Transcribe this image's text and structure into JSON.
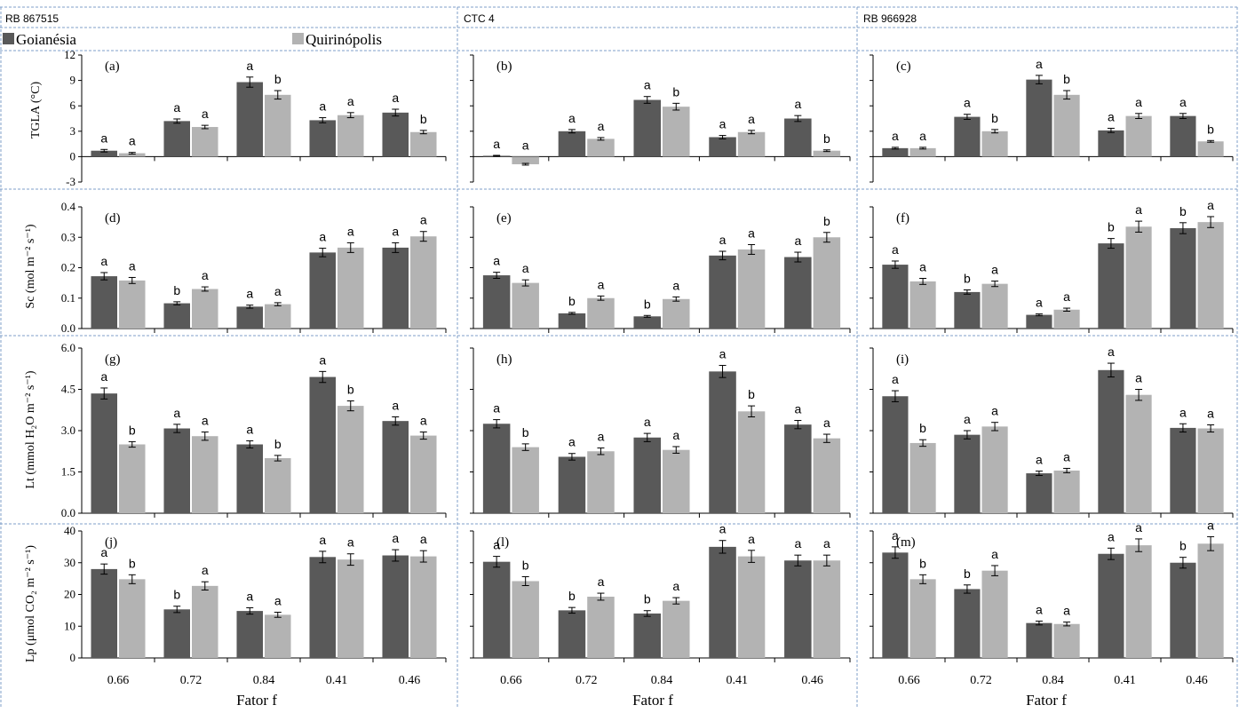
{
  "colors": {
    "goianesia": "#595959",
    "quirinopolis": "#b3b3b3",
    "divider": "#7f9fc9"
  },
  "columns": [
    "RB 867515",
    "CTC 4",
    "RB 966928"
  ],
  "legend": [
    "Goianésia",
    "Quirinópolis"
  ],
  "x_title": "Fator f",
  "rows": [
    {
      "ylabel": "TGLA (°C)",
      "ylim": [
        -3,
        12
      ],
      "ticks": [
        12,
        9,
        6,
        3,
        0,
        -3
      ],
      "tick_labels": [
        "12",
        "9",
        "6",
        "3",
        "0",
        "-3"
      ]
    },
    {
      "ylabel": "Sc (mol m⁻² s⁻¹)",
      "ylim": [
        0,
        0.4
      ],
      "ticks": [
        0.4,
        0.3,
        0.2,
        0.1,
        0.0
      ],
      "tick_labels": [
        "0.4",
        "0.3",
        "0.2",
        "0.1",
        "0.0"
      ]
    },
    {
      "ylabel": "Lt (mmol H₂O m⁻² s⁻¹)",
      "ylim": [
        0,
        6
      ],
      "ticks": [
        6,
        4.5,
        3,
        1.5,
        0
      ],
      "tick_labels": [
        "6.0",
        "4.5",
        "3.0",
        "1.5",
        "0.0"
      ]
    },
    {
      "ylabel": "Lp (μmol CO₂ m⁻² s⁻¹)",
      "ylim": [
        0,
        40
      ],
      "ticks": [
        40,
        30,
        20,
        10,
        0
      ],
      "tick_labels": [
        "40",
        "30",
        "20",
        "10",
        "0"
      ]
    }
  ],
  "chart_data": [
    {
      "type": "bar",
      "panel": "(a)",
      "row": 0,
      "col": 0,
      "categories": [
        "0.66",
        "0.72",
        "0.84",
        "0.41",
        "0.46"
      ],
      "series": [
        {
          "name": "Goianésia",
          "values": [
            0.7,
            4.2,
            8.8,
            4.3,
            5.2
          ],
          "errors": [
            0.15,
            0.25,
            0.6,
            0.3,
            0.4
          ],
          "letters": [
            "a",
            "a",
            "a",
            "a",
            "a"
          ]
        },
        {
          "name": "Quirinópolis",
          "values": [
            0.4,
            3.5,
            7.3,
            4.9,
            2.9
          ],
          "errors": [
            0.1,
            0.2,
            0.5,
            0.3,
            0.2
          ],
          "letters": [
            "a",
            "a",
            "b",
            "a",
            "b"
          ]
        }
      ]
    },
    {
      "type": "bar",
      "panel": "(b)",
      "row": 0,
      "col": 1,
      "categories": [
        "0.66",
        "0.72",
        "0.84",
        "0.41",
        "0.46"
      ],
      "series": [
        {
          "name": "Goianésia",
          "values": [
            0.1,
            3.0,
            6.7,
            2.3,
            4.5
          ],
          "errors": [
            0.05,
            0.2,
            0.4,
            0.2,
            0.35
          ],
          "letters": [
            "a",
            "a",
            "a",
            "a",
            "a"
          ]
        },
        {
          "name": "Quirinópolis",
          "values": [
            -0.9,
            2.1,
            5.9,
            2.9,
            0.7
          ],
          "errors": [
            0.1,
            0.15,
            0.4,
            0.2,
            0.1
          ],
          "letters": [
            "a",
            "a",
            "b",
            "a",
            "b"
          ]
        }
      ]
    },
    {
      "type": "bar",
      "panel": "(c)",
      "row": 0,
      "col": 2,
      "categories": [
        "0.66",
        "0.72",
        "0.84",
        "0.41",
        "0.46"
      ],
      "series": [
        {
          "name": "Goianésia",
          "values": [
            1.0,
            4.7,
            9.1,
            3.1,
            4.8
          ],
          "errors": [
            0.1,
            0.3,
            0.5,
            0.25,
            0.3
          ],
          "letters": [
            "a",
            "a",
            "a",
            "a",
            "a"
          ]
        },
        {
          "name": "Quirinópolis",
          "values": [
            1.0,
            3.0,
            7.3,
            4.8,
            1.8
          ],
          "errors": [
            0.1,
            0.2,
            0.5,
            0.3,
            0.1
          ],
          "letters": [
            "a",
            "b",
            "b",
            "a",
            "b"
          ]
        }
      ]
    },
    {
      "type": "bar",
      "panel": "(d)",
      "row": 1,
      "col": 0,
      "categories": [
        "0.66",
        "0.72",
        "0.84",
        "0.41",
        "0.46"
      ],
      "series": [
        {
          "name": "Goianésia",
          "values": [
            0.172,
            0.083,
            0.072,
            0.25,
            0.266
          ],
          "errors": [
            0.012,
            0.005,
            0.005,
            0.014,
            0.016
          ],
          "letters": [
            "a",
            "b",
            "a",
            "a",
            "a"
          ]
        },
        {
          "name": "Quirinópolis",
          "values": [
            0.158,
            0.13,
            0.08,
            0.266,
            0.303
          ],
          "errors": [
            0.01,
            0.007,
            0.005,
            0.016,
            0.016
          ],
          "letters": [
            "a",
            "a",
            "a",
            "a",
            "a"
          ]
        }
      ]
    },
    {
      "type": "bar",
      "panel": "(e)",
      "row": 1,
      "col": 1,
      "categories": [
        "0.66",
        "0.72",
        "0.84",
        "0.41",
        "0.46"
      ],
      "series": [
        {
          "name": "Goianésia",
          "values": [
            0.175,
            0.05,
            0.04,
            0.24,
            0.235
          ],
          "errors": [
            0.01,
            0.003,
            0.003,
            0.014,
            0.016
          ],
          "letters": [
            "a",
            "b",
            "b",
            "a",
            "a"
          ]
        },
        {
          "name": "Quirinópolis",
          "values": [
            0.15,
            0.1,
            0.097,
            0.26,
            0.3
          ],
          "errors": [
            0.01,
            0.007,
            0.007,
            0.016,
            0.016
          ],
          "letters": [
            "a",
            "a",
            "a",
            "a",
            "b"
          ]
        }
      ]
    },
    {
      "type": "bar",
      "panel": "(f)",
      "row": 1,
      "col": 2,
      "categories": [
        "0.66",
        "0.72",
        "0.84",
        "0.41",
        "0.46"
      ],
      "series": [
        {
          "name": "Goianésia",
          "values": [
            0.21,
            0.12,
            0.045,
            0.28,
            0.33
          ],
          "errors": [
            0.012,
            0.007,
            0.003,
            0.016,
            0.018
          ],
          "letters": [
            "a",
            "b",
            "a",
            "b",
            "b"
          ]
        },
        {
          "name": "Quirinópolis",
          "values": [
            0.155,
            0.147,
            0.062,
            0.335,
            0.35
          ],
          "errors": [
            0.01,
            0.009,
            0.005,
            0.018,
            0.018
          ],
          "letters": [
            "a",
            "a",
            "a",
            "a",
            "a"
          ]
        }
      ]
    },
    {
      "type": "bar",
      "panel": "(g)",
      "row": 2,
      "col": 0,
      "categories": [
        "0.66",
        "0.72",
        "0.84",
        "0.41",
        "0.46"
      ],
      "series": [
        {
          "name": "Goianésia",
          "values": [
            4.35,
            3.08,
            2.5,
            4.95,
            3.35
          ],
          "errors": [
            0.2,
            0.15,
            0.13,
            0.2,
            0.15
          ],
          "letters": [
            "a",
            "a",
            "a",
            "a",
            "a"
          ]
        },
        {
          "name": "Quirinópolis",
          "values": [
            2.5,
            2.8,
            2.0,
            3.9,
            2.82
          ],
          "errors": [
            0.1,
            0.15,
            0.1,
            0.18,
            0.13
          ],
          "letters": [
            "b",
            "a",
            "b",
            "b",
            "a"
          ]
        }
      ]
    },
    {
      "type": "bar",
      "panel": "(h)",
      "row": 2,
      "col": 1,
      "categories": [
        "0.66",
        "0.72",
        "0.84",
        "0.41",
        "0.46"
      ],
      "series": [
        {
          "name": "Goianésia",
          "values": [
            3.25,
            2.05,
            2.75,
            5.15,
            3.22
          ],
          "errors": [
            0.15,
            0.12,
            0.15,
            0.22,
            0.15
          ],
          "letters": [
            "a",
            "a",
            "a",
            "a",
            "a"
          ]
        },
        {
          "name": "Quirinópolis",
          "values": [
            2.4,
            2.25,
            2.3,
            3.7,
            2.72
          ],
          "errors": [
            0.12,
            0.12,
            0.12,
            0.2,
            0.15
          ],
          "letters": [
            "b",
            "a",
            "a",
            "b",
            "a"
          ]
        }
      ]
    },
    {
      "type": "bar",
      "panel": "(i)",
      "row": 2,
      "col": 2,
      "categories": [
        "0.66",
        "0.72",
        "0.84",
        "0.41",
        "0.46"
      ],
      "series": [
        {
          "name": "Goianésia",
          "values": [
            4.25,
            2.85,
            1.45,
            5.2,
            3.1
          ],
          "errors": [
            0.2,
            0.15,
            0.08,
            0.25,
            0.15
          ],
          "letters": [
            "a",
            "a",
            "a",
            "a",
            "a"
          ]
        },
        {
          "name": "Quirinópolis",
          "values": [
            2.55,
            3.15,
            1.55,
            4.3,
            3.08
          ],
          "errors": [
            0.12,
            0.15,
            0.08,
            0.2,
            0.13
          ],
          "letters": [
            "b",
            "a",
            "a",
            "a",
            "a"
          ]
        }
      ]
    },
    {
      "type": "bar",
      "panel": "(j)",
      "row": 3,
      "col": 0,
      "categories": [
        "0.66",
        "0.72",
        "0.84",
        "0.41",
        "0.46"
      ],
      "series": [
        {
          "name": "Goianésia",
          "values": [
            28,
            15.3,
            14.8,
            31.8,
            32.3
          ],
          "errors": [
            1.6,
            1.0,
            1.0,
            1.8,
            1.8
          ],
          "letters": [
            "a",
            "b",
            "a",
            "a",
            "a"
          ]
        },
        {
          "name": "Quirinópolis",
          "values": [
            24.8,
            22.7,
            13.6,
            31.0,
            32.0
          ],
          "errors": [
            1.4,
            1.3,
            0.8,
            1.8,
            1.8
          ],
          "letters": [
            "b",
            "a",
            "a",
            "a",
            "a"
          ]
        }
      ]
    },
    {
      "type": "bar",
      "panel": "(l)",
      "row": 3,
      "col": 1,
      "categories": [
        "0.66",
        "0.72",
        "0.84",
        "0.41",
        "0.46"
      ],
      "series": [
        {
          "name": "Goianésia",
          "values": [
            30.3,
            15.0,
            14.0,
            35.0,
            30.7
          ],
          "errors": [
            1.7,
            0.9,
            0.9,
            2.0,
            1.7
          ],
          "letters": [
            "a",
            "b",
            "b",
            "a",
            "a"
          ]
        },
        {
          "name": "Quirinópolis",
          "values": [
            24.2,
            19.3,
            18.0,
            32.0,
            30.7
          ],
          "errors": [
            1.4,
            1.1,
            1.0,
            1.9,
            1.7
          ],
          "letters": [
            "b",
            "a",
            "a",
            "a",
            "a"
          ]
        }
      ]
    },
    {
      "type": "bar",
      "panel": "(m)",
      "row": 3,
      "col": 2,
      "categories": [
        "0.66",
        "0.72",
        "0.84",
        "0.41",
        "0.46"
      ],
      "series": [
        {
          "name": "Goianésia",
          "values": [
            33.2,
            21.7,
            11.0,
            32.8,
            30.0
          ],
          "errors": [
            1.8,
            1.3,
            0.6,
            1.8,
            1.7
          ],
          "letters": [
            "a",
            "b",
            "a",
            "a",
            "b"
          ]
        },
        {
          "name": "Quirinópolis",
          "values": [
            24.8,
            27.5,
            10.7,
            35.5,
            36.0
          ],
          "errors": [
            1.4,
            1.6,
            0.6,
            2.0,
            2.2
          ],
          "letters": [
            "b",
            "a",
            "a",
            "a",
            "a"
          ]
        }
      ]
    }
  ]
}
